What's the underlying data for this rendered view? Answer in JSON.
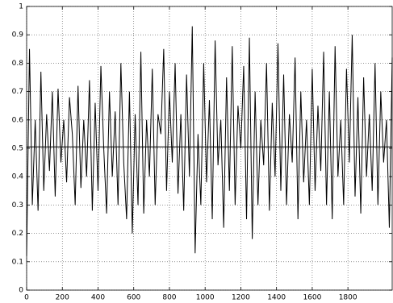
{
  "chart_data": {
    "type": "line",
    "x": [
      0,
      16,
      32,
      48,
      64,
      80,
      96,
      112,
      128,
      144,
      160,
      176,
      192,
      208,
      224,
      240,
      256,
      272,
      288,
      304,
      320,
      336,
      352,
      368,
      384,
      400,
      416,
      432,
      448,
      464,
      480,
      496,
      512,
      528,
      544,
      560,
      576,
      592,
      608,
      624,
      640,
      656,
      672,
      688,
      704,
      720,
      736,
      752,
      768,
      784,
      800,
      816,
      832,
      848,
      864,
      880,
      896,
      912,
      928,
      944,
      960,
      976,
      992,
      1008,
      1024,
      1040,
      1056,
      1072,
      1088,
      1104,
      1120,
      1136,
      1152,
      1168,
      1184,
      1200,
      1216,
      1232,
      1248,
      1264,
      1280,
      1296,
      1312,
      1328,
      1344,
      1360,
      1376,
      1392,
      1408,
      1424,
      1440,
      1456,
      1472,
      1488,
      1504,
      1520,
      1536,
      1552,
      1568,
      1584,
      1600,
      1616,
      1632,
      1648,
      1664,
      1680,
      1696,
      1712,
      1728,
      1744,
      1760,
      1776,
      1792,
      1808,
      1824,
      1840,
      1856,
      1872,
      1888,
      1904,
      1920,
      1936,
      1952,
      1968,
      1984,
      2000,
      2016,
      2032,
      2048
    ],
    "series": [
      {
        "color": "#000000",
        "values": [
          0.12,
          0.85,
          0.3,
          0.6,
          0.28,
          0.77,
          0.35,
          0.62,
          0.42,
          0.7,
          0.33,
          0.71,
          0.45,
          0.6,
          0.38,
          0.68,
          0.55,
          0.3,
          0.72,
          0.36,
          0.6,
          0.4,
          0.74,
          0.28,
          0.66,
          0.35,
          0.79,
          0.5,
          0.27,
          0.7,
          0.4,
          0.63,
          0.3,
          0.8,
          0.45,
          0.25,
          0.7,
          0.2,
          0.62,
          0.3,
          0.84,
          0.27,
          0.6,
          0.4,
          0.78,
          0.3,
          0.62,
          0.55,
          0.85,
          0.35,
          0.7,
          0.45,
          0.8,
          0.34,
          0.62,
          0.28,
          0.76,
          0.4,
          0.93,
          0.13,
          0.55,
          0.3,
          0.8,
          0.38,
          0.67,
          0.25,
          0.88,
          0.44,
          0.6,
          0.22,
          0.75,
          0.35,
          0.86,
          0.3,
          0.65,
          0.5,
          0.79,
          0.25,
          0.89,
          0.18,
          0.7,
          0.3,
          0.6,
          0.44,
          0.8,
          0.28,
          0.66,
          0.4,
          0.87,
          0.35,
          0.76,
          0.3,
          0.62,
          0.45,
          0.82,
          0.25,
          0.7,
          0.38,
          0.6,
          0.3,
          0.78,
          0.35,
          0.65,
          0.42,
          0.84,
          0.3,
          0.7,
          0.25,
          0.86,
          0.4,
          0.6,
          0.3,
          0.78,
          0.45,
          0.9,
          0.33,
          0.68,
          0.27,
          0.75,
          0.4,
          0.62,
          0.35,
          0.8,
          0.3,
          0.7,
          0.45,
          0.6,
          0.22,
          0.82
        ]
      }
    ],
    "hline": 0.505,
    "xlim": [
      0,
      2048
    ],
    "ylim": [
      0,
      1
    ],
    "xticks": [
      0,
      200,
      400,
      600,
      800,
      1000,
      1200,
      1400,
      1600,
      1800
    ],
    "yticks": [
      0,
      0.1,
      0.2,
      0.3,
      0.4,
      0.5,
      0.6,
      0.7,
      0.8,
      0.9,
      1
    ],
    "grid": true
  }
}
